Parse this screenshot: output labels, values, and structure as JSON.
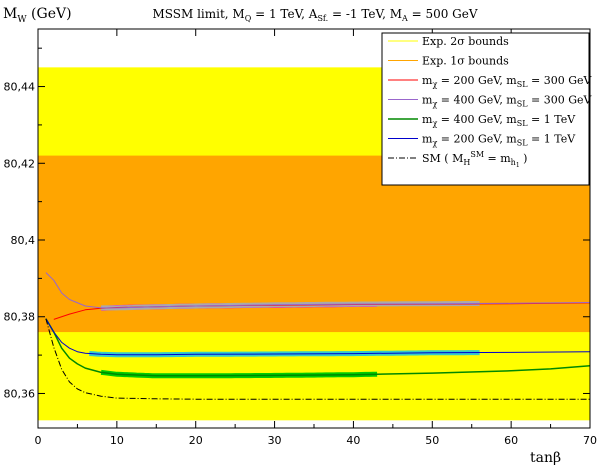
{
  "chart_data": {
    "type": "line",
    "title": "MSSM limit, M_Q = 1 TeV, A_Sf. = -1 TeV, M_A = 500 GeV",
    "xlabel": "tanβ",
    "ylabel": "M_W (GeV)",
    "xlim": [
      0,
      70
    ],
    "ylim": [
      80.351,
      80.455
    ],
    "xticks": [
      0,
      10,
      20,
      30,
      40,
      50,
      60,
      70
    ],
    "yticks": [
      80.36,
      80.38,
      80.4,
      80.42,
      80.44
    ],
    "xtick_labels": [
      "0",
      "10",
      "20",
      "30",
      "40",
      "50",
      "60",
      "70"
    ],
    "ytick_labels": [
      "80,36",
      "80,38",
      "80,4",
      "80,42",
      "80,44"
    ],
    "grid": false,
    "legend_position": "top-right",
    "bands": [
      {
        "name": "Exp. 2σ bounds",
        "color": "#ffff00",
        "range": [
          80.353,
          80.445
        ]
      },
      {
        "name": "Exp. 1σ bounds",
        "color": "#ffa500",
        "range": [
          80.376,
          80.422
        ]
      }
    ],
    "series": [
      {
        "name": "m_χ = 200 GeV, m_SL = 300 GeV",
        "color": "#ff0000",
        "width": 1,
        "x": [
          2,
          4,
          6,
          8,
          10,
          15,
          20,
          30,
          40,
          50,
          60,
          70
        ],
        "y": [
          80.3793,
          80.3807,
          80.3818,
          80.3822,
          80.3824,
          80.3826,
          80.3828,
          80.383,
          80.3832,
          80.3833,
          80.3834,
          80.3836
        ],
        "highlight": {
          "color": "#ff00cc",
          "range": [
            8,
            43
          ]
        }
      },
      {
        "name": "m_χ = 400 GeV, m_SL = 300 GeV",
        "color": "#9966cc",
        "width": 1,
        "x": [
          1,
          2,
          3,
          4,
          6,
          8,
          10,
          15,
          20,
          30,
          40,
          50,
          60,
          70
        ],
        "y": [
          80.3915,
          80.3895,
          80.3862,
          80.3845,
          80.3828,
          80.3823,
          80.3823,
          80.3826,
          80.3828,
          80.3831,
          80.3833,
          80.3834,
          80.3835,
          80.3837
        ],
        "highlight": {
          "color": "#aaaaaa",
          "range": [
            8,
            56
          ]
        }
      },
      {
        "name": "m_χ = 400 GeV, m_SL = 1 TeV",
        "color": "#008800",
        "width": 1.5,
        "x": [
          1,
          2,
          3,
          4,
          5,
          6,
          8,
          10,
          15,
          20,
          30,
          40,
          50,
          60,
          65,
          70
        ],
        "y": [
          80.3795,
          80.376,
          80.3718,
          80.3692,
          80.3677,
          80.3666,
          80.3655,
          80.365,
          80.3646,
          80.3646,
          80.3647,
          80.3649,
          80.3653,
          80.3659,
          80.3664,
          80.3672
        ],
        "highlight": {
          "color": "#00cc00",
          "range": [
            8,
            43
          ]
        }
      },
      {
        "name": "m_χ = 200 GeV, m_SL = 1 TeV",
        "color": "#0000cc",
        "width": 1,
        "x": [
          1,
          2,
          3,
          4,
          5,
          6,
          8,
          10,
          15,
          20,
          30,
          40,
          50,
          60,
          70
        ],
        "y": [
          80.3795,
          80.376,
          80.3733,
          80.3718,
          80.3709,
          80.3705,
          80.3702,
          80.3701,
          80.3701,
          80.3702,
          80.3703,
          80.3704,
          80.3706,
          80.3707,
          80.3709
        ],
        "highlight": {
          "color": "#33cccc",
          "range": [
            6.5,
            56
          ]
        }
      },
      {
        "name": "SM ( M_H^SM = m_h1 )",
        "color": "#000000",
        "width": 1,
        "dash": "6,2,1,2",
        "x": [
          1,
          2,
          3,
          4,
          5,
          6,
          8,
          10,
          15,
          20,
          30,
          40,
          50,
          60,
          70
        ],
        "y": [
          80.3795,
          80.372,
          80.3663,
          80.363,
          80.3612,
          80.3602,
          80.3593,
          80.3588,
          80.3586,
          80.3585,
          80.3585,
          80.3585,
          80.3585,
          80.3585,
          80.3585
        ]
      }
    ]
  }
}
